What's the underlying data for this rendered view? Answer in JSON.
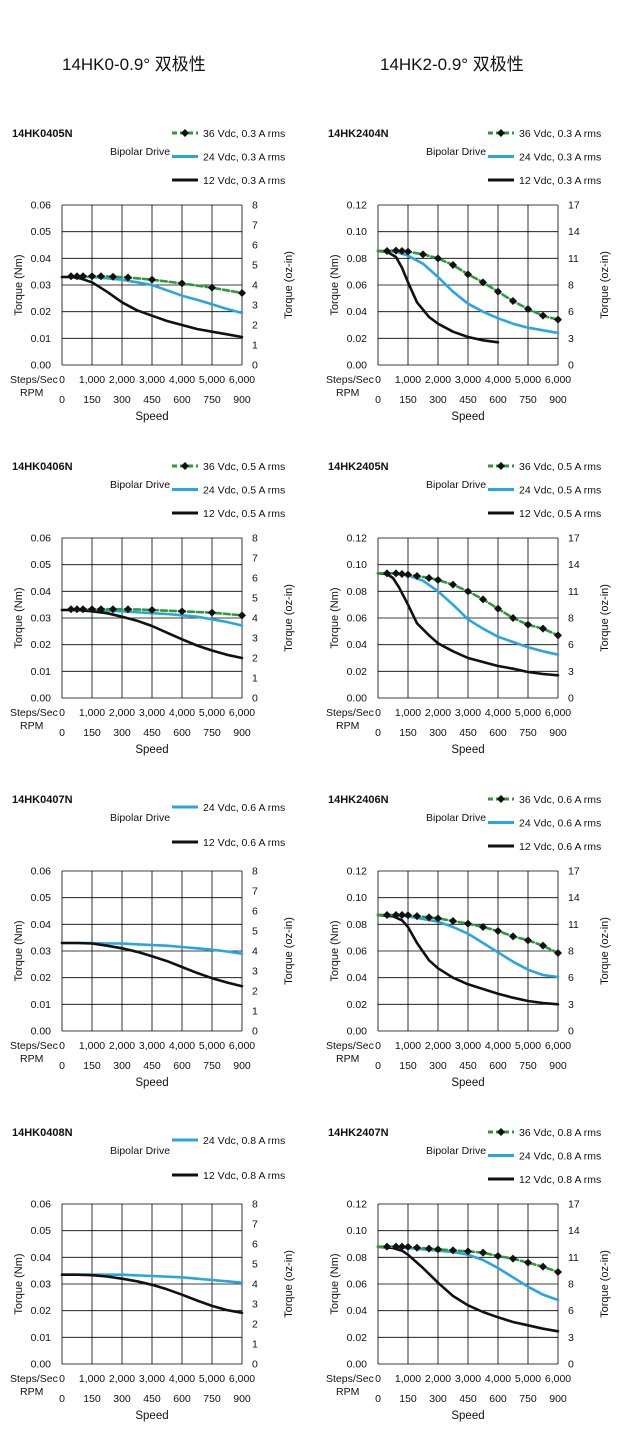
{
  "headers": {
    "left": "14HK0-0.9°  双极性",
    "right": "14HK2-0.9°  双极性"
  },
  "common": {
    "drive": "Bipolar Drive",
    "ylabel": "Torque (Nm)",
    "y2label": "Torque (oz-in)",
    "xlabel": "Speed",
    "steps_label": "Steps/Sec",
    "rpm_label": "RPM",
    "steps_ticks": [
      "0",
      "1,000",
      "2,000",
      "3,000",
      "4,000",
      "5,000",
      "6,000"
    ],
    "rpm_ticks": [
      "0",
      "150",
      "300",
      "450",
      "600",
      "750",
      "900"
    ]
  },
  "colors": {
    "s36": "#2e9a3a",
    "s24": "#2aa6de",
    "s12": "#111111",
    "grid": "#000000"
  },
  "chart_data": [
    {
      "type": "line",
      "title": "14HK0405N",
      "xlabel": "Speed",
      "ylabel": "Torque (Nm)",
      "y2label": "Torque (oz-in)",
      "ylim": [
        0,
        0.06
      ],
      "yticks": [
        "0.00",
        "0.01",
        "0.02",
        "0.03",
        "0.04",
        "0.05",
        "0.06"
      ],
      "y2ticks": [
        "0",
        "1",
        "2",
        "3",
        "4",
        "5",
        "6",
        "7",
        "8"
      ],
      "xlim": [
        0,
        6000
      ],
      "series": [
        {
          "name": "36 Vdc, 0.3 A rms",
          "color": "s36",
          "markers": true,
          "x": [
            300,
            500,
            700,
            1000,
            1300,
            1700,
            2200,
            3000,
            4000,
            5000,
            6000
          ],
          "y": [
            0.0333,
            0.0333,
            0.0333,
            0.0333,
            0.0333,
            0.0331,
            0.0328,
            0.032,
            0.0306,
            0.029,
            0.027
          ]
        },
        {
          "name": "24 Vdc, 0.3 A rms",
          "color": "s24",
          "markers": false,
          "x": [
            0,
            600,
            1000,
            1500,
            2000,
            2500,
            3000,
            3500,
            4000,
            4500,
            5000,
            5500,
            6000
          ],
          "y": [
            0.033,
            0.033,
            0.033,
            0.0325,
            0.032,
            0.031,
            0.03,
            0.028,
            0.026,
            0.0245,
            0.0228,
            0.021,
            0.0195
          ]
        },
        {
          "name": "12 Vdc, 0.3 A rms",
          "color": "s12",
          "markers": false,
          "x": [
            0,
            300,
            600,
            1000,
            1500,
            2000,
            2500,
            3000,
            3500,
            4000,
            4500,
            5000,
            5500,
            6000
          ],
          "y": [
            0.033,
            0.033,
            0.0325,
            0.031,
            0.0275,
            0.0235,
            0.0205,
            0.0185,
            0.0165,
            0.015,
            0.0135,
            0.0125,
            0.0115,
            0.0105
          ]
        }
      ]
    },
    {
      "type": "line",
      "title": "14HK2404N",
      "xlabel": "Speed",
      "ylabel": "Torque (Nm)",
      "y2label": "Torque (oz-in)",
      "ylim": [
        0,
        0.12
      ],
      "yticks": [
        "0.00",
        "0.02",
        "0.04",
        "0.06",
        "0.08",
        "0.10",
        "0.12"
      ],
      "y2ticks": [
        "0",
        "3",
        "6",
        "8",
        "11",
        "14",
        "17"
      ],
      "xlim": [
        0,
        6000
      ],
      "series": [
        {
          "name": "36 Vdc, 0.3 A rms",
          "color": "s36",
          "markers": true,
          "x": [
            0,
            300,
            600,
            800,
            1000,
            1500,
            2000,
            2500,
            3000,
            3500,
            4000,
            4500,
            5000,
            5500,
            6000
          ],
          "y": [
            0.0855,
            0.0855,
            0.0858,
            0.0855,
            0.085,
            0.083,
            0.08,
            0.075,
            0.068,
            0.062,
            0.055,
            0.048,
            0.042,
            0.037,
            0.034
          ]
        },
        {
          "name": "24 Vdc, 0.3 A rms",
          "color": "s24",
          "markers": false,
          "x": [
            0,
            300,
            600,
            1000,
            1500,
            2000,
            2500,
            3000,
            3500,
            4000,
            4500,
            5000,
            5500,
            6000
          ],
          "y": [
            0.0855,
            0.0855,
            0.085,
            0.082,
            0.076,
            0.066,
            0.055,
            0.046,
            0.04,
            0.035,
            0.031,
            0.028,
            0.026,
            0.024
          ]
        },
        {
          "name": "12 Vdc, 0.3 A rms",
          "color": "s12",
          "markers": false,
          "x": [
            0,
            300,
            600,
            800,
            1000,
            1300,
            1700,
            2000,
            2500,
            3000,
            3500,
            4000
          ],
          "y": [
            0.0855,
            0.085,
            0.081,
            0.073,
            0.062,
            0.047,
            0.036,
            0.031,
            0.025,
            0.021,
            0.0185,
            0.017
          ]
        }
      ]
    },
    {
      "type": "line",
      "title": "14HK0406N",
      "xlabel": "Speed",
      "ylabel": "Torque (Nm)",
      "y2label": "Torque (oz-in)",
      "ylim": [
        0,
        0.06
      ],
      "yticks": [
        "0.00",
        "0.01",
        "0.02",
        "0.03",
        "0.04",
        "0.05",
        "0.06"
      ],
      "y2ticks": [
        "0",
        "1",
        "2",
        "3",
        "4",
        "5",
        "6",
        "7",
        "8"
      ],
      "xlim": [
        0,
        6000
      ],
      "series": [
        {
          "name": "36 Vdc, 0.5 A rms",
          "color": "s36",
          "markers": true,
          "x": [
            300,
            500,
            700,
            1000,
            1300,
            1700,
            2200,
            3000,
            4000,
            5000,
            6000
          ],
          "y": [
            0.0333,
            0.0333,
            0.0333,
            0.0333,
            0.0333,
            0.0333,
            0.0333,
            0.033,
            0.0325,
            0.032,
            0.031
          ]
        },
        {
          "name": "24 Vdc, 0.5 A rms",
          "color": "s24",
          "markers": false,
          "x": [
            0,
            1000,
            2000,
            3000,
            3500,
            4000,
            4500,
            5000,
            5500,
            6000
          ],
          "y": [
            0.033,
            0.033,
            0.0325,
            0.0318,
            0.0315,
            0.031,
            0.0305,
            0.0295,
            0.0285,
            0.0272
          ]
        },
        {
          "name": "12 Vdc, 0.5 A rms",
          "color": "s12",
          "markers": false,
          "x": [
            0,
            500,
            1000,
            1500,
            2000,
            2500,
            3000,
            3500,
            4000,
            4500,
            5000,
            5500,
            6000
          ],
          "y": [
            0.033,
            0.033,
            0.0325,
            0.0318,
            0.0305,
            0.029,
            0.027,
            0.0245,
            0.022,
            0.0197,
            0.0178,
            0.0162,
            0.015
          ]
        }
      ]
    },
    {
      "type": "line",
      "title": "14HK2405N",
      "xlabel": "Speed",
      "ylabel": "Torque (Nm)",
      "y2label": "Torque (oz-in)",
      "ylim": [
        0,
        0.12
      ],
      "yticks": [
        "0.00",
        "0.02",
        "0.04",
        "0.06",
        "0.08",
        "0.10",
        "0.12"
      ],
      "y2ticks": [
        "0",
        "3",
        "6",
        "8",
        "11",
        "14",
        "17"
      ],
      "xlim": [
        0,
        6000
      ],
      "series": [
        {
          "name": "36 Vdc, 0.5 A rms",
          "color": "s36",
          "markers": true,
          "x": [
            0,
            300,
            600,
            800,
            1000,
            1300,
            1700,
            2000,
            2500,
            3000,
            3500,
            4000,
            4500,
            5000,
            5500,
            6000
          ],
          "y": [
            0.0935,
            0.0935,
            0.0935,
            0.093,
            0.0925,
            0.0915,
            0.09,
            0.0885,
            0.085,
            0.08,
            0.074,
            0.067,
            0.06,
            0.055,
            0.052,
            0.047
          ]
        },
        {
          "name": "24 Vdc, 0.5 A rms",
          "color": "s24",
          "markers": false,
          "x": [
            0,
            500,
            1000,
            1500,
            2000,
            2500,
            3000,
            3500,
            4000,
            4500,
            5000,
            5500,
            6000
          ],
          "y": [
            0.0935,
            0.0935,
            0.092,
            0.088,
            0.08,
            0.07,
            0.059,
            0.052,
            0.046,
            0.042,
            0.038,
            0.035,
            0.0325
          ]
        },
        {
          "name": "12 Vdc, 0.5 A rms",
          "color": "s12",
          "markers": false,
          "x": [
            0,
            300,
            500,
            700,
            1000,
            1300,
            1700,
            2000,
            2500,
            3000,
            3500,
            4000,
            4500,
            5000,
            5500,
            6000
          ],
          "y": [
            0.0935,
            0.093,
            0.09,
            0.083,
            0.07,
            0.056,
            0.047,
            0.041,
            0.035,
            0.03,
            0.027,
            0.024,
            0.022,
            0.0195,
            0.018,
            0.017
          ]
        }
      ]
    },
    {
      "type": "line",
      "title": "14HK0407N",
      "xlabel": "Speed",
      "ylabel": "Torque (Nm)",
      "y2label": "Torque (oz-in)",
      "ylim": [
        0,
        0.06
      ],
      "yticks": [
        "0.00",
        "0.01",
        "0.02",
        "0.03",
        "0.04",
        "0.05",
        "0.06"
      ],
      "y2ticks": [
        "0",
        "1",
        "2",
        "3",
        "4",
        "5",
        "6",
        "7",
        "8"
      ],
      "xlim": [
        0,
        6000
      ],
      "series": [
        {
          "name": "24 Vdc, 0.6 A rms",
          "color": "s24",
          "markers": false,
          "x": [
            0,
            1000,
            1500,
            2000,
            2500,
            3000,
            3500,
            4000,
            4500,
            5000,
            5500,
            6000
          ],
          "y": [
            0.033,
            0.033,
            0.0328,
            0.0328,
            0.0325,
            0.0322,
            0.032,
            0.0315,
            0.031,
            0.0305,
            0.0298,
            0.029
          ]
        },
        {
          "name": "12 Vdc, 0.6 A rms",
          "color": "s12",
          "markers": false,
          "x": [
            0,
            500,
            1000,
            1500,
            2000,
            2500,
            3000,
            3500,
            4000,
            4500,
            5000,
            5500,
            6000
          ],
          "y": [
            0.033,
            0.033,
            0.0328,
            0.032,
            0.031,
            0.0297,
            0.028,
            0.0262,
            0.024,
            0.0218,
            0.0198,
            0.0182,
            0.0168
          ]
        }
      ]
    },
    {
      "type": "line",
      "title": "14HK2406N",
      "xlabel": "Speed",
      "ylabel": "Torque (Nm)",
      "y2label": "Torque (oz-in)",
      "ylim": [
        0,
        0.12
      ],
      "yticks": [
        "0.00",
        "0.02",
        "0.04",
        "0.06",
        "0.08",
        "0.10",
        "0.12"
      ],
      "y2ticks": [
        "0",
        "3",
        "6",
        "8",
        "11",
        "14",
        "17"
      ],
      "xlim": [
        0,
        6000
      ],
      "series": [
        {
          "name": "36 Vdc, 0.6 A rms",
          "color": "s36",
          "markers": true,
          "x": [
            0,
            300,
            600,
            800,
            1000,
            1300,
            1700,
            2000,
            2500,
            3000,
            3500,
            4000,
            4500,
            5000,
            5500,
            6000
          ],
          "y": [
            0.087,
            0.087,
            0.087,
            0.087,
            0.0868,
            0.0862,
            0.0852,
            0.0845,
            0.0825,
            0.0805,
            0.078,
            0.075,
            0.071,
            0.068,
            0.064,
            0.0585
          ]
        },
        {
          "name": "24 Vdc, 0.6 A rms",
          "color": "s24",
          "markers": false,
          "x": [
            0,
            500,
            1000,
            1500,
            2000,
            2500,
            3000,
            3500,
            4000,
            4500,
            5000,
            5500,
            6000
          ],
          "y": [
            0.087,
            0.087,
            0.086,
            0.084,
            0.082,
            0.078,
            0.073,
            0.066,
            0.059,
            0.052,
            0.046,
            0.042,
            0.0405
          ]
        },
        {
          "name": "12 Vdc, 0.6 A rms",
          "color": "s12",
          "markers": false,
          "x": [
            0,
            500,
            800,
            1000,
            1300,
            1700,
            2000,
            2500,
            3000,
            3500,
            4000,
            4500,
            5000,
            5500,
            6000
          ],
          "y": [
            0.087,
            0.086,
            0.083,
            0.078,
            0.066,
            0.053,
            0.047,
            0.04,
            0.035,
            0.0315,
            0.028,
            0.025,
            0.0225,
            0.021,
            0.02
          ]
        }
      ]
    },
    {
      "type": "line",
      "title": "14HK0408N",
      "xlabel": "Speed",
      "ylabel": "Torque (Nm)",
      "y2label": "Torque (oz-in)",
      "ylim": [
        0,
        0.06
      ],
      "yticks": [
        "0.00",
        "0.01",
        "0.02",
        "0.03",
        "0.04",
        "0.05",
        "0.06"
      ],
      "y2ticks": [
        "0",
        "1",
        "2",
        "3",
        "4",
        "5",
        "6",
        "7",
        "8"
      ],
      "xlim": [
        0,
        6000
      ],
      "series": [
        {
          "name": "24 Vdc, 0.8 A rms",
          "color": "s24",
          "markers": false,
          "x": [
            0,
            1000,
            2000,
            3000,
            4000,
            4500,
            5000,
            5500,
            6000
          ],
          "y": [
            0.0335,
            0.0335,
            0.0335,
            0.033,
            0.0325,
            0.032,
            0.0315,
            0.031,
            0.0305
          ]
        },
        {
          "name": "12 Vdc, 0.8 A rms",
          "color": "s12",
          "markers": false,
          "x": [
            0,
            500,
            1000,
            1500,
            2000,
            2500,
            3000,
            3500,
            4000,
            4500,
            5000,
            5500,
            6000
          ],
          "y": [
            0.0335,
            0.0335,
            0.0333,
            0.0328,
            0.032,
            0.031,
            0.0297,
            0.028,
            0.026,
            0.0238,
            0.0218,
            0.0202,
            0.0192
          ]
        }
      ]
    },
    {
      "type": "line",
      "title": "14HK2407N",
      "xlabel": "Speed",
      "ylabel": "Torque (Nm)",
      "y2label": "Torque (oz-in)",
      "ylim": [
        0,
        0.12
      ],
      "yticks": [
        "0.00",
        "0.02",
        "0.04",
        "0.06",
        "0.08",
        "0.10",
        "0.12"
      ],
      "y2ticks": [
        "0",
        "3",
        "6",
        "8",
        "11",
        "14",
        "17"
      ],
      "xlim": [
        0,
        6000
      ],
      "series": [
        {
          "name": "36 Vdc, 0.8 A rms",
          "color": "s36",
          "markers": true,
          "x": [
            0,
            300,
            600,
            800,
            1000,
            1300,
            1700,
            2000,
            2500,
            3000,
            3500,
            4000,
            4500,
            5000,
            5500,
            6000
          ],
          "y": [
            0.088,
            0.088,
            0.088,
            0.088,
            0.0878,
            0.0872,
            0.0865,
            0.086,
            0.0852,
            0.0845,
            0.0835,
            0.081,
            0.079,
            0.076,
            0.073,
            0.069
          ]
        },
        {
          "name": "24 Vdc, 0.8 A rms",
          "color": "s24",
          "markers": false,
          "x": [
            0,
            1000,
            1500,
            2000,
            2500,
            3000,
            3500,
            4000,
            4500,
            5000,
            5500,
            6000
          ],
          "y": [
            0.088,
            0.087,
            0.086,
            0.085,
            0.084,
            0.082,
            0.078,
            0.072,
            0.065,
            0.058,
            0.052,
            0.048
          ]
        },
        {
          "name": "12 Vdc, 0.8 A rms",
          "color": "s12",
          "markers": false,
          "x": [
            0,
            500,
            800,
            1000,
            1500,
            2000,
            2500,
            3000,
            3500,
            4000,
            4500,
            5000,
            5500,
            6000
          ],
          "y": [
            0.088,
            0.087,
            0.085,
            0.082,
            0.072,
            0.061,
            0.051,
            0.044,
            0.039,
            0.035,
            0.0315,
            0.029,
            0.0265,
            0.0245
          ]
        }
      ]
    }
  ]
}
